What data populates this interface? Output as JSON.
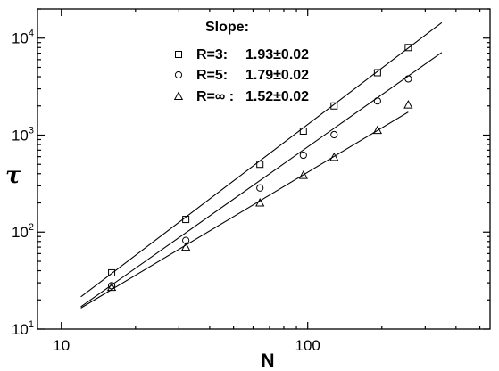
{
  "chart_data": {
    "type": "scatter",
    "xscale": "log",
    "yscale": "log",
    "xlim": [
      8,
      550
    ],
    "ylim": [
      10,
      20000
    ],
    "xlabel": "N",
    "ylabel": "τ",
    "x_ticks": [
      {
        "value": 10,
        "label": "10"
      },
      {
        "value": 100,
        "label": "100"
      }
    ],
    "y_ticks": [
      {
        "value": 10,
        "base": "10",
        "exp": "1"
      },
      {
        "value": 100,
        "base": "10",
        "exp": "2"
      },
      {
        "value": 1000,
        "base": "10",
        "exp": "3"
      },
      {
        "value": 10000,
        "base": "10",
        "exp": "4"
      }
    ],
    "legend": {
      "title": "Slope:",
      "placement": "top-center",
      "entries": [
        {
          "label": "R=3:",
          "slope": "1.93±0.02"
        },
        {
          "label": "R=5:",
          "slope": "1.79±0.02"
        },
        {
          "label": "R=∞ :",
          "slope": "1.52±0.02"
        }
      ]
    },
    "series": [
      {
        "marker": "square",
        "x": [
          16,
          32,
          64,
          96,
          128,
          192,
          256
        ],
        "y": [
          38,
          135,
          500,
          1100,
          2000,
          4400,
          8000
        ],
        "fit": {
          "x": [
            12,
            350
          ],
          "slope": 1.93,
          "y0": 21.5
        }
      },
      {
        "marker": "circle",
        "x": [
          16,
          32,
          64,
          96,
          128,
          192,
          256
        ],
        "y": [
          28,
          82,
          285,
          620,
          1010,
          2250,
          3800
        ],
        "fit": {
          "x": [
            12,
            350
          ],
          "slope": 1.79,
          "y0": 17.0
        }
      },
      {
        "marker": "triangle",
        "x": [
          16,
          32,
          64,
          96,
          128,
          192,
          256
        ],
        "y": [
          27,
          70,
          200,
          385,
          590,
          1120,
          2050
        ],
        "fit": {
          "x": [
            12,
            256
          ],
          "slope": 1.52,
          "y0": 16.5
        }
      }
    ]
  }
}
